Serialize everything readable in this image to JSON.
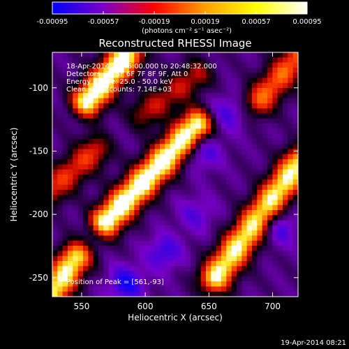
{
  "chart_data": {
    "type": "heatmap",
    "title": "Reconstructed RHESSI Image",
    "xlabel": "Heliocentric X (arcsec)",
    "ylabel": "Heliocentric Y (arcsec)",
    "xlim": [
      527,
      720
    ],
    "ylim": [
      -265,
      -72
    ],
    "x_ticks": [
      550,
      600,
      650,
      700
    ],
    "y_ticks": [
      -250,
      -200,
      -150,
      -100
    ],
    "x_tick_labels": [
      "550",
      "600",
      "650",
      "700"
    ],
    "y_tick_labels": [
      "-250",
      "-200",
      "-150",
      "-100"
    ],
    "colorbar": {
      "min": -0.00095,
      "max": 0.00095,
      "tick_values": [
        -0.00095,
        -0.00057,
        -0.00019,
        0.00019,
        0.00057,
        0.00095
      ],
      "tick_labels": [
        "-0.00095",
        "-0.00057",
        "-0.00019",
        "0.00019",
        "0.00057",
        "0.00095"
      ],
      "unit_label": "(photons cm⁻² s⁻¹ asec⁻²)",
      "colors": [
        "#0000ff",
        "#7a00c8",
        "#ff0000",
        "#ffa000",
        "#ffff00",
        "#ffffff"
      ]
    },
    "annotations": [
      "18-Apr-2014 20:46:00.000 to 20:48:32.000",
      "Detectors: 3F 5F 6F 7F 8F 9F, Att 0",
      "Energy Range: 25.0 - 50.0 keV",
      "Clean.   Total counts: 7.14E+03"
    ],
    "peak_label": "Position of Peak = [561,-93]",
    "peak": [
      561,
      -93
    ],
    "bright_ridges": [
      {
        "x1": 527,
        "y1": -262,
        "x2": 545,
        "y2": -235,
        "intensity": 0.9
      },
      {
        "x1": 570,
        "y1": -205,
        "x2": 640,
        "y2": -130,
        "intensity": 1.0
      },
      {
        "x1": 655,
        "y1": -250,
        "x2": 720,
        "y2": -160,
        "intensity": 0.9
      },
      {
        "x1": 555,
        "y1": -110,
        "x2": 585,
        "y2": -75,
        "intensity": 1.0
      },
      {
        "x1": 690,
        "y1": -110,
        "x2": 720,
        "y2": -75,
        "intensity": 0.6
      },
      {
        "x1": 527,
        "y1": -180,
        "x2": 560,
        "y2": -150,
        "intensity": 0.5
      },
      {
        "x1": 600,
        "y1": -120,
        "x2": 640,
        "y2": -90,
        "intensity": 0.4
      }
    ],
    "dark_spots": [
      {
        "x": 585,
        "y": -255,
        "intensity": 0.9
      },
      {
        "x": 645,
        "y": -150,
        "intensity": 0.7
      },
      {
        "x": 615,
        "y": -230,
        "intensity": 0.7
      },
      {
        "x": 665,
        "y": -120,
        "intensity": 0.6
      },
      {
        "x": 705,
        "y": -210,
        "intensity": 0.7
      },
      {
        "x": 640,
        "y": -200,
        "intensity": 0.5
      }
    ]
  },
  "timestamp": "19-Apr-2014 08:21"
}
